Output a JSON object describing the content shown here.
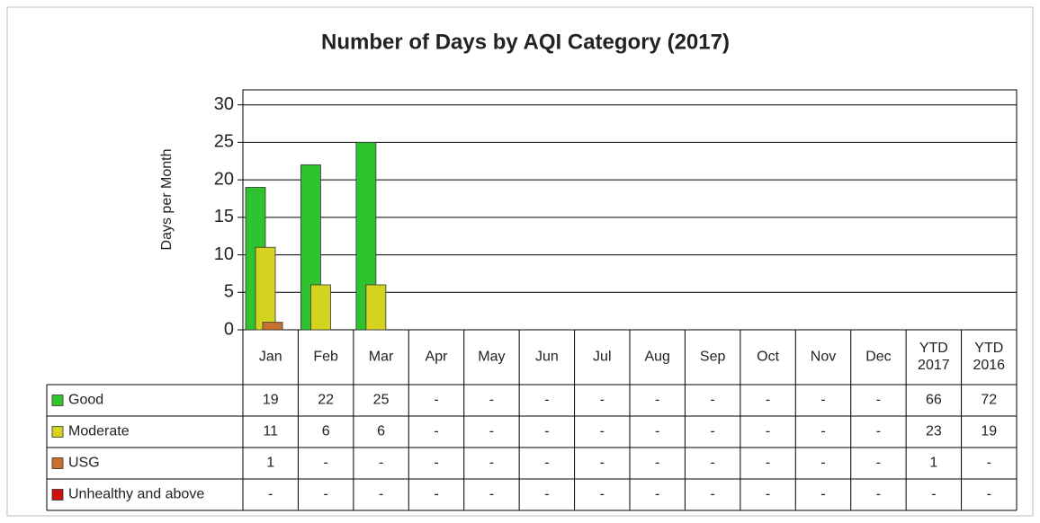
{
  "chart_data": {
    "type": "bar",
    "title": "Number of Days by AQI Category (2017)",
    "y_label": "Days per Month",
    "categories": [
      "Jan",
      "Feb",
      "Mar",
      "Apr",
      "May",
      "Jun",
      "Jul",
      "Aug",
      "Sep",
      "Oct",
      "Nov",
      "Dec"
    ],
    "ytd_categories": [
      "YTD 2017",
      "YTD 2016"
    ],
    "ylim": [
      0,
      32
    ],
    "yticks": [
      0,
      5,
      10,
      15,
      20,
      25,
      30
    ],
    "grid": true,
    "series": [
      {
        "name": "Good",
        "color": "#2fc42f",
        "values": [
          19,
          22,
          25,
          null,
          null,
          null,
          null,
          null,
          null,
          null,
          null,
          null
        ],
        "value_labels": [
          "19",
          "22",
          "25",
          "-",
          "-",
          "-",
          "-",
          "-",
          "-",
          "-",
          "-",
          "-"
        ],
        "ytd_values": [
          66,
          72
        ],
        "ytd_labels": [
          "66",
          "72"
        ]
      },
      {
        "name": "Moderate",
        "color": "#d4d420",
        "values": [
          11,
          6,
          6,
          null,
          null,
          null,
          null,
          null,
          null,
          null,
          null,
          null
        ],
        "value_labels": [
          "11",
          "6",
          "6",
          "-",
          "-",
          "-",
          "-",
          "-",
          "-",
          "-",
          "-",
          "-"
        ],
        "ytd_values": [
          23,
          19
        ],
        "ytd_labels": [
          "23",
          "19"
        ]
      },
      {
        "name": "USG",
        "color": "#c8702e",
        "values": [
          1,
          null,
          null,
          null,
          null,
          null,
          null,
          null,
          null,
          null,
          null,
          null
        ],
        "value_labels": [
          "1",
          "-",
          "-",
          "-",
          "-",
          "-",
          "-",
          "-",
          "-",
          "-",
          "-",
          "-"
        ],
        "ytd_values": [
          1,
          null
        ],
        "ytd_labels": [
          "1",
          "-"
        ]
      },
      {
        "name": "Unhealthy and above",
        "color": "#cc1010",
        "values": [
          null,
          null,
          null,
          null,
          null,
          null,
          null,
          null,
          null,
          null,
          null,
          null
        ],
        "value_labels": [
          "-",
          "-",
          "-",
          "-",
          "-",
          "-",
          "-",
          "-",
          "-",
          "-",
          "-",
          "-"
        ],
        "ytd_values": [
          null,
          null
        ],
        "ytd_labels": [
          "-",
          "-"
        ]
      }
    ]
  }
}
